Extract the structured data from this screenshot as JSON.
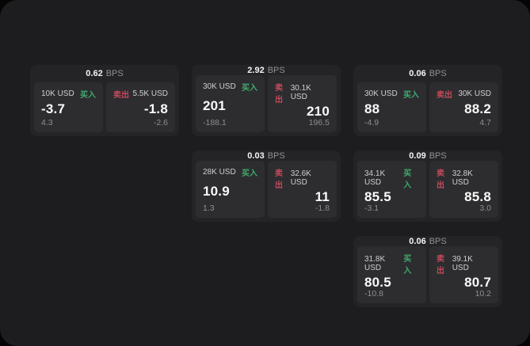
{
  "colors": {
    "buy": "#40ab6d",
    "sell": "#c44a5a",
    "panel_bg": "#1d1d1f",
    "card_bg": "#242427",
    "tile_bg": "#2d2d30"
  },
  "cards": [
    {
      "column": 1,
      "row": 1,
      "bps_value": "0.62",
      "bps_unit": "BPS",
      "buy": {
        "size": "10K USD",
        "action": "买入",
        "price": "-3.7",
        "change": "4.3"
      },
      "sell": {
        "action": "卖出",
        "size": "5.5K USD",
        "price": "-1.8",
        "change": "-2.6"
      }
    },
    {
      "column": 2,
      "row": 1,
      "bps_value": "2.92",
      "bps_unit": "BPS",
      "buy": {
        "size": "30K USD",
        "action": "买入",
        "price": "201",
        "change": "-188.1"
      },
      "sell": {
        "action": "卖出",
        "size": "30.1K USD",
        "price": "210",
        "change": "196.5"
      }
    },
    {
      "column": 3,
      "row": 1,
      "bps_value": "0.06",
      "bps_unit": "BPS",
      "buy": {
        "size": "30K USD",
        "action": "买入",
        "price": "88",
        "change": "-4.9"
      },
      "sell": {
        "action": "卖出",
        "size": "30K USD",
        "price": "88.2",
        "change": "4.7"
      }
    },
    {
      "column": 2,
      "row": 2,
      "bps_value": "0.03",
      "bps_unit": "BPS",
      "buy": {
        "size": "28K USD",
        "action": "买入",
        "price": "10.9",
        "change": "1.3"
      },
      "sell": {
        "action": "卖出",
        "size": "32.6K USD",
        "price": "11",
        "change": "-1.8"
      }
    },
    {
      "column": 3,
      "row": 2,
      "bps_value": "0.09",
      "bps_unit": "BPS",
      "buy": {
        "size": "34.1K USD",
        "action": "买入",
        "price": "85.5",
        "change": "-3.1"
      },
      "sell": {
        "action": "卖出",
        "size": "32.8K USD",
        "price": "85.8",
        "change": "3.0"
      }
    },
    {
      "column": 3,
      "row": 3,
      "bps_value": "0.06",
      "bps_unit": "BPS",
      "buy": {
        "size": "31.8K USD",
        "action": "买入",
        "price": "80.5",
        "change": "-10.8"
      },
      "sell": {
        "action": "卖出",
        "size": "39.1K USD",
        "price": "80.7",
        "change": "10.2"
      }
    }
  ]
}
